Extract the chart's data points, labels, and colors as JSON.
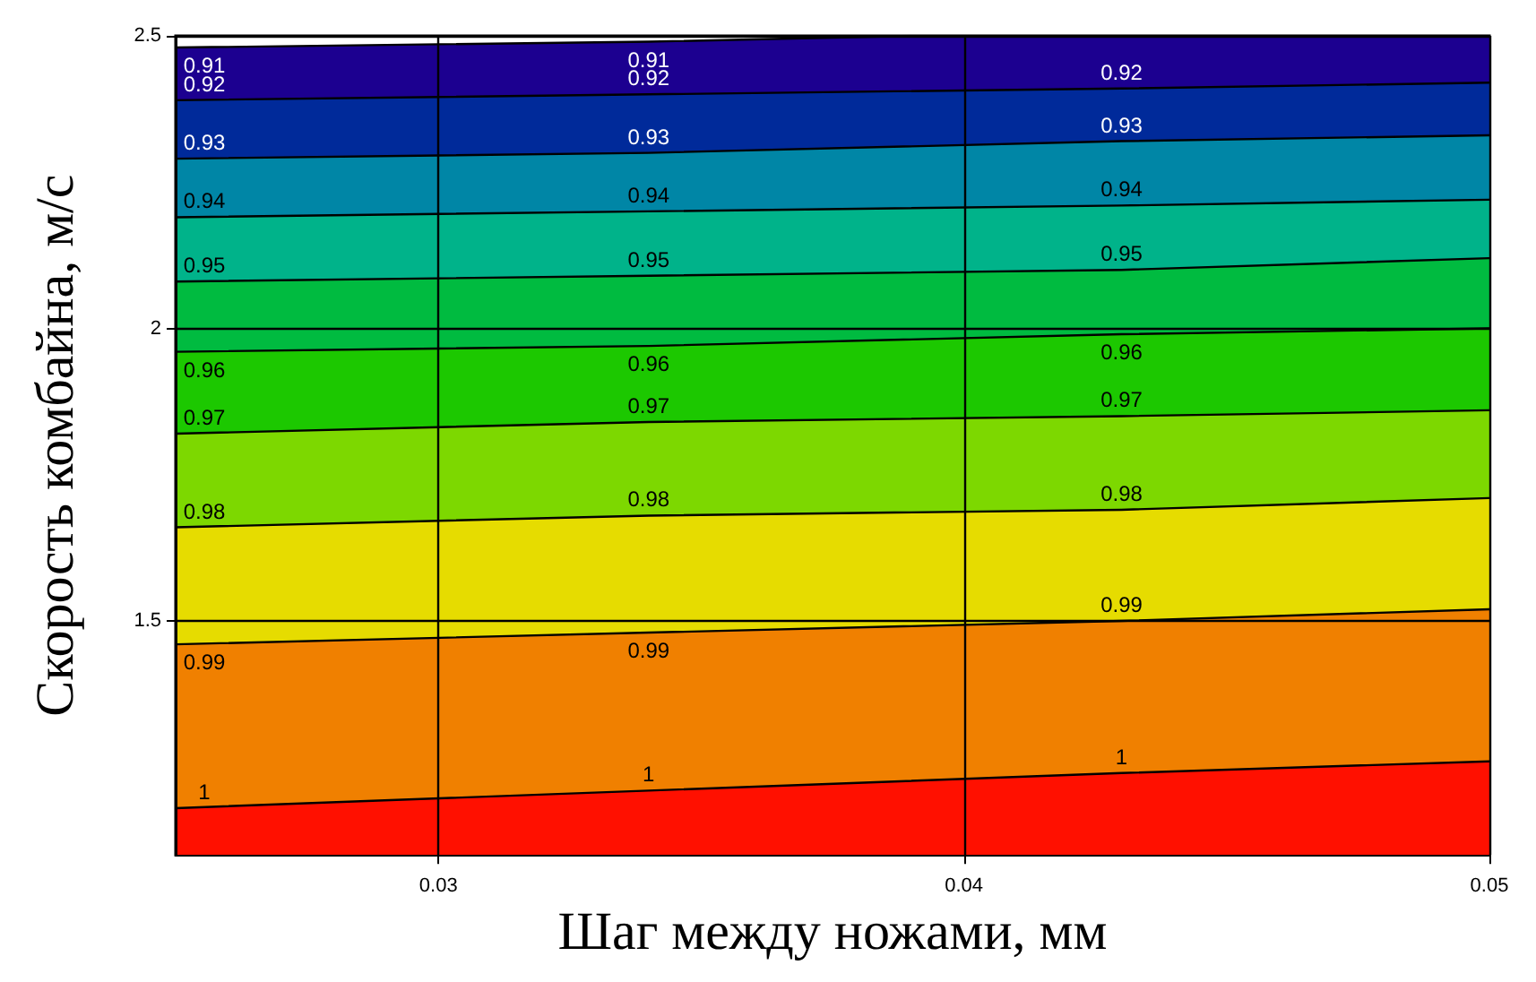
{
  "chart_data": {
    "type": "area",
    "xlabel": "Шаг между ножами, мм",
    "ylabel": "Скорость комбайна, м/с",
    "xlim": [
      0.025,
      0.05
    ],
    "ylim": [
      1.1,
      2.5
    ],
    "xticks": [
      0.03,
      0.04,
      0.05
    ],
    "yticks": [
      1.5,
      2,
      2.5
    ],
    "grid": true,
    "legend": false,
    "marker": "none",
    "series": [
      {
        "name": "0.91",
        "color": "#1c0090",
        "x": [
          0.025,
          0.034,
          0.039,
          0.05
        ],
        "values": [
          2.48,
          2.49,
          2.5,
          2.5
        ]
      },
      {
        "name": "0.92",
        "color": "#002a9a",
        "x": [
          0.025,
          0.034,
          0.043,
          0.05
        ],
        "values": [
          2.39,
          2.4,
          2.41,
          2.42
        ]
      },
      {
        "name": "0.93",
        "color": "#0086a6",
        "x": [
          0.025,
          0.034,
          0.043,
          0.05
        ],
        "values": [
          2.29,
          2.3,
          2.32,
          2.33
        ]
      },
      {
        "name": "0.94",
        "color": "#00b38a",
        "x": [
          0.025,
          0.034,
          0.043,
          0.05
        ],
        "values": [
          2.19,
          2.2,
          2.21,
          2.22
        ]
      },
      {
        "name": "0.95",
        "color": "#00bb40",
        "x": [
          0.025,
          0.034,
          0.043,
          0.05
        ],
        "values": [
          2.08,
          2.09,
          2.1,
          2.12
        ]
      },
      {
        "name": "0.96",
        "color": "#1cc800",
        "x": [
          0.025,
          0.034,
          0.043,
          0.05
        ],
        "values": [
          1.96,
          1.97,
          1.99,
          2.0
        ]
      },
      {
        "name": "0.97",
        "color": "#7dd800",
        "x": [
          0.025,
          0.034,
          0.043,
          0.05
        ],
        "values": [
          1.82,
          1.84,
          1.85,
          1.86
        ]
      },
      {
        "name": "0.98",
        "color": "#e6dc00",
        "x": [
          0.025,
          0.034,
          0.043,
          0.05
        ],
        "values": [
          1.66,
          1.68,
          1.69,
          1.71
        ]
      },
      {
        "name": "0.99",
        "color": "#f08000",
        "x": [
          0.025,
          0.034,
          0.043,
          0.05
        ],
        "values": [
          1.46,
          1.48,
          1.5,
          1.52
        ]
      },
      {
        "name": "1",
        "color": "#ff1000",
        "x": [
          0.025,
          0.034,
          0.043,
          0.05
        ],
        "values": [
          1.18,
          1.21,
          1.24,
          1.26
        ]
      }
    ]
  }
}
